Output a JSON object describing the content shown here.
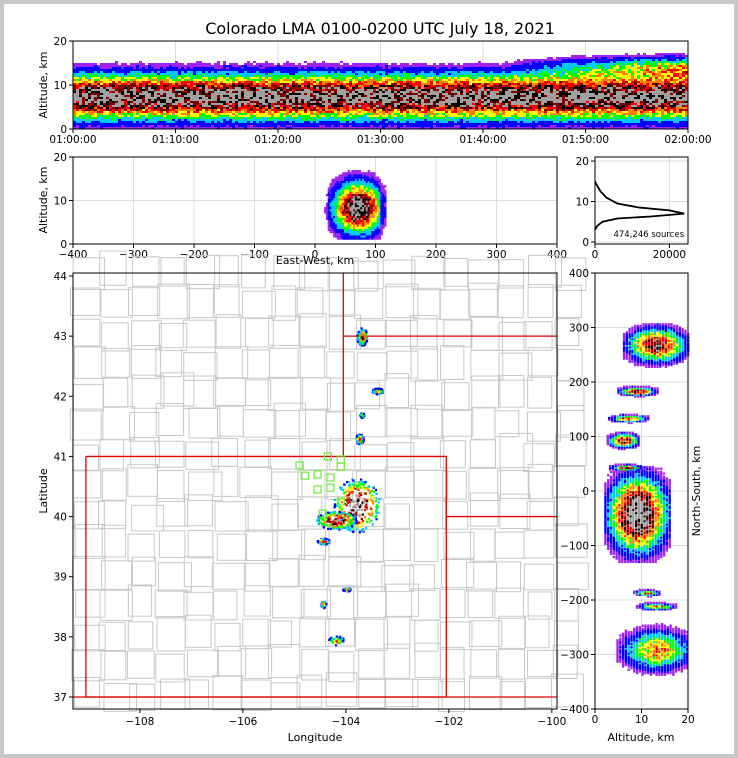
{
  "title": "Colorado LMA 0100-0200 UTC July 18, 2021",
  "colors": {
    "density_scale": [
      "#ffffff",
      "#a020f0",
      "#0000ff",
      "#00c8ff",
      "#00ff00",
      "#ffff00",
      "#ff8000",
      "#ff0000",
      "#800000",
      "#000000",
      "#a0a0a0"
    ],
    "state_border": "#e00000",
    "county_border": "#c8c8c8",
    "station_marker": "#66ee33",
    "histogram_line": "#000000"
  },
  "chart_data": [
    {
      "id": "altitude-vs-time",
      "type": "heatmap",
      "xlabel": "",
      "ylabel": "Altitude, km",
      "x_tick_labels": [
        "01:00:00",
        "01:10:00",
        "01:20:00",
        "01:30:00",
        "01:40:00",
        "01:50:00",
        "02:00:00"
      ],
      "xlim_minutes": [
        0,
        60
      ],
      "ylim": [
        0,
        20
      ],
      "y_ticks": [
        0,
        10,
        20
      ],
      "grid": true,
      "density_band": {
        "altitude_core_km": 7.5,
        "altitude_spread_km": 4.5,
        "upper_growth_after_minute": 42,
        "upper_altitude_km": 14
      }
    },
    {
      "id": "altitude-vs-east-west",
      "type": "heatmap",
      "xlabel": "East-West, km",
      "ylabel": "Altitude, km",
      "xlim": [
        -400,
        400
      ],
      "x_ticks": [
        -400,
        -300,
        -200,
        -100,
        0,
        100,
        200,
        300,
        400
      ],
      "ylim": [
        0,
        20
      ],
      "y_ticks": [
        0,
        10,
        20
      ],
      "grid": true,
      "cluster": {
        "ew_km_range": [
          0,
          115
        ],
        "core_ew_km": 70,
        "core_alt_km": 8,
        "alt_range_km": [
          1,
          20
        ]
      }
    },
    {
      "id": "altitude-histogram",
      "type": "line",
      "annotation": "474,246 sources",
      "xlim": [
        0,
        25000
      ],
      "x_ticks": [
        0,
        20000
      ],
      "ylim": [
        -0.5,
        21
      ],
      "y_ticks": [
        0,
        10,
        20
      ],
      "grid": true,
      "x": [
        0,
        600,
        2000,
        6000,
        15000,
        24000,
        20000,
        12000,
        6000,
        3000,
        1500,
        500,
        0
      ],
      "y": [
        3,
        4,
        5,
        5.8,
        6.3,
        7,
        7.8,
        8.5,
        9.5,
        11,
        12.5,
        14,
        15
      ]
    },
    {
      "id": "plan-view-map",
      "type": "scatter",
      "xlabel": "Longitude",
      "ylabel": "Latitude",
      "xlim": [
        -109.3,
        -99.9
      ],
      "x_ticks": [
        -108,
        -106,
        -104,
        -102,
        -100
      ],
      "ylim": [
        36.8,
        44.05
      ],
      "y_ticks": [
        37,
        38,
        39,
        40,
        41,
        42,
        43,
        44
      ],
      "state_lines": [
        [
          [
            -109.05,
            41
          ],
          [
            -102.05,
            41
          ],
          [
            -102.05,
            37
          ],
          [
            -109.05,
            37
          ],
          [
            -109.05,
            41
          ]
        ],
        [
          [
            -104.05,
            44.05
          ],
          [
            -104.05,
            41
          ]
        ],
        [
          [
            -104.05,
            43
          ],
          [
            -99.9,
            43
          ]
        ],
        [
          [
            -102.05,
            40
          ],
          [
            -99.9,
            40
          ]
        ],
        [
          [
            -109.3,
            37
          ],
          [
            -99.9,
            37
          ]
        ]
      ],
      "stations": [
        [
          -104.35,
          41.0
        ],
        [
          -104.1,
          40.95
        ],
        [
          -104.9,
          40.85
        ],
        [
          -104.1,
          40.83
        ],
        [
          -104.55,
          40.7
        ],
        [
          -104.8,
          40.68
        ],
        [
          -104.3,
          40.65
        ],
        [
          -104.55,
          40.45
        ],
        [
          -104.3,
          40.48
        ],
        [
          -104.1,
          40.25
        ],
        [
          -104.45,
          40.05
        ]
      ],
      "lightning_clusters": [
        {
          "lon": -103.8,
          "lat": 40.2,
          "dlon": 0.45,
          "dlat": 0.45,
          "weight": 1.0
        },
        {
          "lon": -104.2,
          "lat": 39.95,
          "dlon": 0.4,
          "dlat": 0.15,
          "weight": 0.8
        },
        {
          "lon": -103.7,
          "lat": 43.0,
          "dlon": 0.1,
          "dlat": 0.15,
          "weight": 0.5
        },
        {
          "lon": -103.4,
          "lat": 42.1,
          "dlon": 0.1,
          "dlat": 0.05,
          "weight": 0.4
        },
        {
          "lon": -103.75,
          "lat": 41.3,
          "dlon": 0.08,
          "dlat": 0.08,
          "weight": 0.45
        },
        {
          "lon": -104.45,
          "lat": 39.6,
          "dlon": 0.12,
          "dlat": 0.05,
          "weight": 0.35
        },
        {
          "lon": -104.0,
          "lat": 38.8,
          "dlon": 0.08,
          "dlat": 0.03,
          "weight": 0.2
        },
        {
          "lon": -104.45,
          "lat": 38.55,
          "dlon": 0.05,
          "dlat": 0.06,
          "weight": 0.2
        },
        {
          "lon": -104.2,
          "lat": 37.95,
          "dlon": 0.15,
          "dlat": 0.08,
          "weight": 0.2
        },
        {
          "lon": -103.7,
          "lat": 41.7,
          "dlon": 0.04,
          "dlat": 0.04,
          "weight": 0.2
        }
      ]
    },
    {
      "id": "north-south-vs-altitude",
      "type": "heatmap",
      "xlabel": "Altitude, km",
      "ylabel": "North-South, km",
      "xlim": [
        0,
        20
      ],
      "x_ticks": [
        0,
        10,
        20
      ],
      "ylim": [
        -400,
        400
      ],
      "y_ticks": [
        -400,
        -300,
        -200,
        -100,
        0,
        100,
        200,
        300,
        400
      ],
      "grid": true,
      "clusters": [
        {
          "ns": -40,
          "dns": 55,
          "alt": 9,
          "dalt": 5,
          "weight": 1.0
        },
        {
          "ns": 270,
          "dns": 25,
          "alt": 13,
          "dalt": 5,
          "weight": 0.55
        },
        {
          "ns": 185,
          "dns": 6,
          "alt": 9,
          "dalt": 3,
          "weight": 0.45
        },
        {
          "ns": 135,
          "dns": 5,
          "alt": 7,
          "dalt": 3,
          "weight": 0.35
        },
        {
          "ns": 95,
          "dns": 10,
          "alt": 6,
          "dalt": 2.5,
          "weight": 0.5
        },
        {
          "ns": 45,
          "dns": 4,
          "alt": 6.5,
          "dalt": 2.5,
          "weight": 0.35
        },
        {
          "ns": -185,
          "dns": 4,
          "alt": 11,
          "dalt": 2,
          "weight": 0.3
        },
        {
          "ns": -210,
          "dns": 5,
          "alt": 13,
          "dalt": 3,
          "weight": 0.2
        },
        {
          "ns": -290,
          "dns": 30,
          "alt": 13,
          "dalt": 6,
          "weight": 0.15
        }
      ]
    }
  ]
}
